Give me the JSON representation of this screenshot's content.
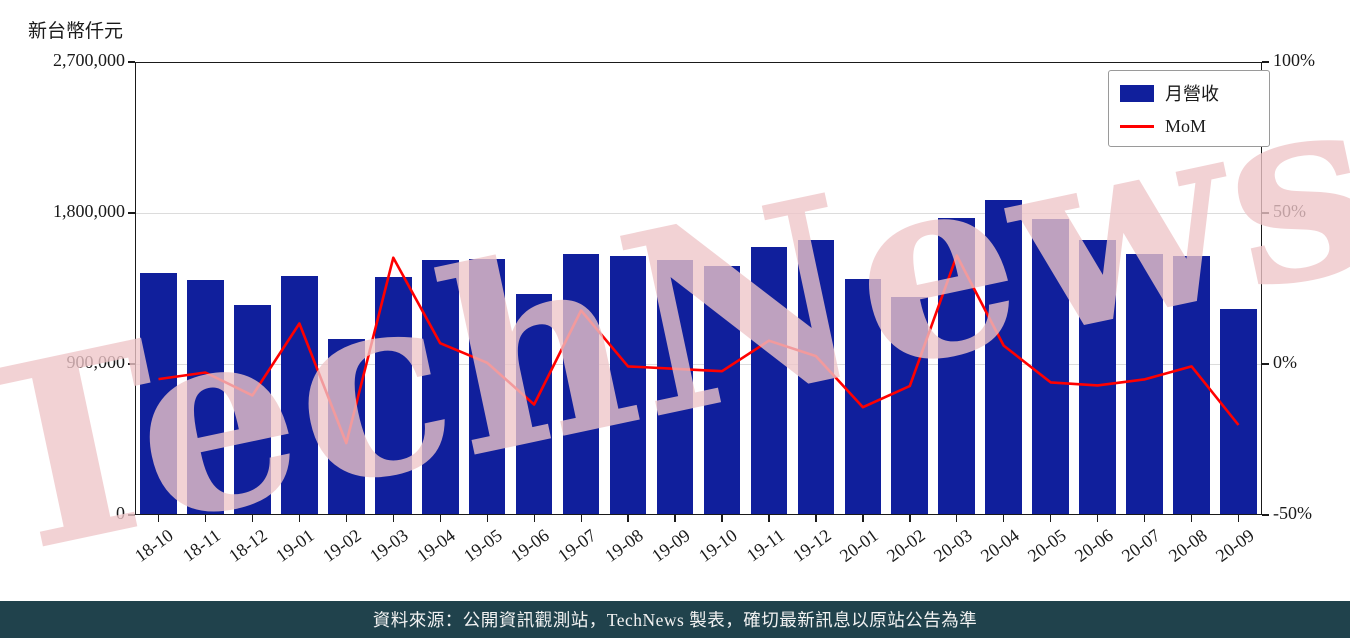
{
  "chart_data": {
    "type": "bar",
    "categories": [
      "18-10",
      "18-11",
      "18-12",
      "19-01",
      "19-02",
      "19-03",
      "19-04",
      "19-05",
      "19-06",
      "19-07",
      "19-08",
      "19-09",
      "19-10",
      "19-11",
      "19-12",
      "20-01",
      "20-02",
      "20-03",
      "20-04",
      "20-05",
      "20-06",
      "20-07",
      "20-08",
      "20-09"
    ],
    "series": [
      {
        "name": "月營收",
        "type": "bar",
        "axis": "left",
        "color": "#101f9c",
        "values": [
          1440000,
          1400000,
          1254000,
          1422000,
          1050000,
          1420000,
          1518000,
          1524000,
          1320000,
          1554000,
          1542000,
          1518000,
          1482000,
          1596000,
          1638000,
          1404000,
          1302000,
          1770000,
          1878000,
          1764000,
          1638000,
          1554000,
          1542000,
          1230000
        ]
      },
      {
        "name": "MoM",
        "type": "line",
        "axis": "right",
        "color": "#ff0000",
        "values": [
          -5.0,
          -2.8,
          -10.4,
          13.4,
          -26.2,
          35.2,
          6.9,
          0.4,
          -13.4,
          17.7,
          -0.8,
          -1.6,
          -2.4,
          7.7,
          2.6,
          -14.3,
          -7.3,
          35.9,
          6.1,
          -6.1,
          -7.1,
          -5.1,
          -0.8,
          -20.2
        ]
      }
    ],
    "left_axis": {
      "title": "新台幣仟元",
      "min": 0,
      "max": 2700000,
      "ticks": [
        {
          "value": 0,
          "label": "0"
        },
        {
          "value": 900000,
          "label": "900,000"
        },
        {
          "value": 1800000,
          "label": "1,800,000"
        },
        {
          "value": 2700000,
          "label": "2,700,000"
        }
      ]
    },
    "right_axis": {
      "min": -50,
      "max": 100,
      "ticks": [
        {
          "value": -50,
          "label": "-50%"
        },
        {
          "value": 0,
          "label": "0%"
        },
        {
          "value": 50,
          "label": "50%"
        },
        {
          "value": 100,
          "label": "100%"
        }
      ]
    },
    "legend": {
      "position": "top-right"
    },
    "grid": true,
    "watermark": {
      "text": "TechNews",
      "color": "#efc6c9"
    }
  },
  "footer": {
    "text": "資料來源：公開資訊觀測站，TechNews 製表，確切最新訊息以原站公告為準",
    "bg": "#20424c"
  }
}
